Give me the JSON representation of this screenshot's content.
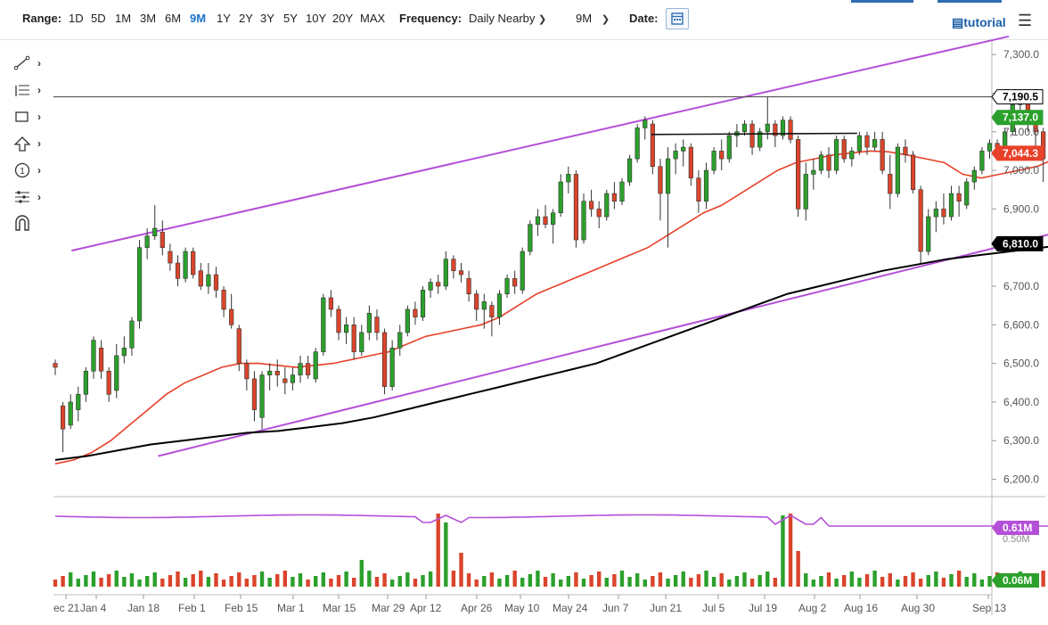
{
  "toolbar": {
    "range_label": "Range:",
    "ranges": [
      "1D",
      "5D",
      "1M",
      "3M",
      "6M",
      "9M",
      "1Y",
      "2Y",
      "3Y",
      "5Y",
      "10Y",
      "20Y",
      "MAX"
    ],
    "active_range": "9M",
    "frequency_label": "Frequency:",
    "frequency_value": "Daily Nearby",
    "period_value": "9M",
    "date_label": "Date:",
    "tutorial_label": "tutorial",
    "icons": [
      "calendar-icon",
      "film-icon",
      "hamburger-menu-icon"
    ]
  },
  "side_tools": {
    "icons": [
      "trend-line-icon",
      "fibonacci-icon",
      "rectangle-icon",
      "arrow-up-icon",
      "circle-number-icon",
      "pitchfork-icon",
      "magnet-icon"
    ],
    "counter_text": "1"
  },
  "colors": {
    "up": "#2ca02c",
    "down": "#d9452b",
    "ma50": "#e8412a",
    "ma200": "#000000",
    "channel": "#b44fd8",
    "oscillator": "#b44fd8",
    "accent": "#1a73c9"
  },
  "chart_data": {
    "type": "candlestick",
    "instrument_freq": "Daily Nearby",
    "x_tick_labels": [
      "ec 21",
      "Jan 4",
      "Jan 18",
      "Feb 1",
      "Feb 15",
      "Mar 1",
      "Mar 15",
      "Mar 29",
      "Apr 12",
      "Apr 26",
      "May 10",
      "May 24",
      "Jun 7",
      "Jun 21",
      "Jul 5",
      "Jul 19",
      "Aug 2",
      "Aug 16",
      "Aug 30",
      "Sep 13"
    ],
    "y_tick_labels": [
      "7,300.0",
      "7,200.0",
      "7,100.0",
      "7,000.0",
      "6,900.0",
      "6,800.0",
      "6,700.0",
      "6,600.0",
      "6,500.0",
      "6,400.0",
      "6,300.0",
      "6,200.0"
    ],
    "y_ticks": [
      7300,
      7200,
      7100,
      7000,
      6900,
      6800,
      6700,
      6600,
      6500,
      6400,
      6300,
      6200
    ],
    "ylim": [
      6155,
      7335
    ],
    "price_labels": [
      {
        "text": "7,190.5",
        "value": 7190.5,
        "color": "#ffffff",
        "text_color": "#000000",
        "border": "#000000"
      },
      {
        "text": "7,137.0",
        "value": 7137.0,
        "color": "#2ca02c",
        "text_color": "#ffffff"
      },
      {
        "text": "7,044.3",
        "value": 7044.3,
        "color": "#e8412a",
        "text_color": "#ffffff"
      },
      {
        "text": "6,810.0",
        "value": 6810.0,
        "color": "#000000",
        "text_color": "#ffffff"
      }
    ],
    "horizontal_line": 7190.5,
    "resistance_segment": {
      "from": "Jun 16",
      "to": "Aug 13",
      "value": 7093
    },
    "channel_upper": [
      {
        "day": 0,
        "value": 6792
      },
      {
        "day": 176,
        "value": 7347
      }
    ],
    "channel_lower": [
      {
        "day": 17,
        "value": 6260
      },
      {
        "day": 190,
        "value": 6857
      }
    ],
    "candles": [
      [
        6500,
        6510,
        6470,
        6490
      ],
      [
        6390,
        6400,
        6270,
        6330
      ],
      [
        6340,
        6420,
        6330,
        6400
      ],
      [
        6380,
        6440,
        6350,
        6420
      ],
      [
        6420,
        6490,
        6400,
        6480
      ],
      [
        6480,
        6570,
        6460,
        6560
      ],
      [
        6540,
        6560,
        6460,
        6480
      ],
      [
        6480,
        6490,
        6400,
        6420
      ],
      [
        6430,
        6550,
        6410,
        6520
      ],
      [
        6520,
        6570,
        6500,
        6540
      ],
      [
        6540,
        6620,
        6520,
        6610
      ],
      [
        6610,
        6820,
        6590,
        6800
      ],
      [
        6800,
        6850,
        6770,
        6830
      ],
      [
        6830,
        6910,
        6820,
        6850
      ],
      [
        6840,
        6870,
        6780,
        6800
      ],
      [
        6790,
        6810,
        6740,
        6760
      ],
      [
        6760,
        6780,
        6700,
        6720
      ],
      [
        6720,
        6800,
        6710,
        6790
      ],
      [
        6790,
        6800,
        6720,
        6730
      ],
      [
        6740,
        6760,
        6690,
        6700
      ],
      [
        6700,
        6760,
        6680,
        6730
      ],
      [
        6730,
        6750,
        6670,
        6690
      ],
      [
        6690,
        6700,
        6620,
        6640
      ],
      [
        6640,
        6680,
        6590,
        6600
      ],
      [
        6590,
        6600,
        6480,
        6500
      ],
      [
        6500,
        6510,
        6430,
        6460
      ],
      [
        6460,
        6480,
        6350,
        6380
      ],
      [
        6360,
        6480,
        6330,
        6470
      ],
      [
        6470,
        6500,
        6430,
        6480
      ],
      [
        6480,
        6510,
        6440,
        6470
      ],
      [
        6460,
        6490,
        6420,
        6450
      ],
      [
        6450,
        6490,
        6430,
        6470
      ],
      [
        6470,
        6520,
        6450,
        6500
      ],
      [
        6500,
        6520,
        6460,
        6470
      ],
      [
        6460,
        6540,
        6450,
        6530
      ],
      [
        6530,
        6680,
        6520,
        6670
      ],
      [
        6670,
        6690,
        6620,
        6640
      ],
      [
        6640,
        6650,
        6560,
        6580
      ],
      [
        6580,
        6620,
        6550,
        6600
      ],
      [
        6600,
        6620,
        6510,
        6530
      ],
      [
        6530,
        6600,
        6520,
        6580
      ],
      [
        6580,
        6650,
        6560,
        6630
      ],
      [
        6620,
        6640,
        6560,
        6580
      ],
      [
        6580,
        6590,
        6420,
        6440
      ],
      [
        6440,
        6560,
        6430,
        6540
      ],
      [
        6540,
        6600,
        6520,
        6580
      ],
      [
        6580,
        6650,
        6570,
        6640
      ],
      [
        6640,
        6660,
        6600,
        6620
      ],
      [
        6620,
        6700,
        6610,
        6690
      ],
      [
        6690,
        6720,
        6670,
        6710
      ],
      [
        6710,
        6730,
        6680,
        6700
      ],
      [
        6700,
        6790,
        6690,
        6770
      ],
      [
        6770,
        6780,
        6720,
        6740
      ],
      [
        6740,
        6760,
        6710,
        6730
      ],
      [
        6720,
        6740,
        6660,
        6680
      ],
      [
        6680,
        6690,
        6610,
        6640
      ],
      [
        6640,
        6680,
        6590,
        6660
      ],
      [
        6650,
        6660,
        6570,
        6620
      ],
      [
        6620,
        6690,
        6600,
        6680
      ],
      [
        6680,
        6730,
        6670,
        6720
      ],
      [
        6720,
        6740,
        6680,
        6700
      ],
      [
        6690,
        6800,
        6680,
        6790
      ],
      [
        6790,
        6870,
        6780,
        6860
      ],
      [
        6860,
        6900,
        6830,
        6880
      ],
      [
        6880,
        6910,
        6850,
        6860
      ],
      [
        6860,
        6900,
        6810,
        6890
      ],
      [
        6890,
        6990,
        6880,
        6970
      ],
      [
        6970,
        7010,
        6940,
        6990
      ],
      [
        6990,
        7000,
        6800,
        6820
      ],
      [
        6820,
        6940,
        6810,
        6920
      ],
      [
        6920,
        6950,
        6880,
        6900
      ],
      [
        6900,
        6920,
        6850,
        6880
      ],
      [
        6880,
        6950,
        6870,
        6940
      ],
      [
        6940,
        6970,
        6900,
        6920
      ],
      [
        6920,
        6980,
        6910,
        6970
      ],
      [
        6970,
        7040,
        6960,
        7030
      ],
      [
        7030,
        7120,
        7020,
        7110
      ],
      [
        7110,
        7140,
        7080,
        7130
      ],
      [
        7120,
        7130,
        6990,
        7010
      ],
      [
        7010,
        7030,
        6870,
        6940
      ],
      [
        6940,
        7060,
        6800,
        7030
      ],
      [
        7030,
        7070,
        6990,
        7050
      ],
      [
        7050,
        7080,
        7010,
        7060
      ],
      [
        7060,
        7070,
        6960,
        6980
      ],
      [
        6980,
        7000,
        6890,
        6920
      ],
      [
        6920,
        7020,
        6900,
        7000
      ],
      [
        7000,
        7060,
        6990,
        7050
      ],
      [
        7050,
        7080,
        7000,
        7030
      ],
      [
        7030,
        7100,
        7020,
        7090
      ],
      [
        7090,
        7120,
        7060,
        7100
      ],
      [
        7100,
        7130,
        7090,
        7120
      ],
      [
        7120,
        7130,
        7040,
        7060
      ],
      [
        7060,
        7110,
        7050,
        7100
      ],
      [
        7100,
        7190,
        7080,
        7120
      ],
      [
        7120,
        7130,
        7060,
        7090
      ],
      [
        7090,
        7140,
        7080,
        7130
      ],
      [
        7130,
        7140,
        7070,
        7080
      ],
      [
        7080,
        7090,
        6880,
        6900
      ],
      [
        6900,
        7020,
        6870,
        6990
      ],
      [
        6990,
        7030,
        6950,
        7000
      ],
      [
        7000,
        7050,
        6990,
        7040
      ],
      [
        7040,
        7060,
        6980,
        7000
      ],
      [
        7000,
        7090,
        6990,
        7080
      ],
      [
        7080,
        7090,
        7020,
        7030
      ],
      [
        7030,
        7060,
        7010,
        7050
      ],
      [
        7050,
        7100,
        7040,
        7090
      ],
      [
        7090,
        7100,
        7040,
        7060
      ],
      [
        7060,
        7100,
        7050,
        7080
      ],
      [
        7080,
        7100,
        6990,
        7000
      ],
      [
        6990,
        7040,
        6900,
        6940
      ],
      [
        6940,
        7070,
        6930,
        7060
      ],
      [
        7060,
        7080,
        7020,
        7040
      ],
      [
        7040,
        7050,
        6940,
        6950
      ],
      [
        6950,
        6960,
        6760,
        6790
      ],
      [
        6790,
        6900,
        6780,
        6880
      ],
      [
        6880,
        6920,
        6840,
        6900
      ],
      [
        6900,
        6940,
        6860,
        6880
      ],
      [
        6880,
        6960,
        6870,
        6940
      ],
      [
        6940,
        6960,
        6880,
        6920
      ],
      [
        6910,
        6980,
        6900,
        6970
      ],
      [
        6970,
        7010,
        6950,
        7000
      ],
      [
        7000,
        7060,
        6990,
        7050
      ],
      [
        7050,
        7080,
        7030,
        7070
      ],
      [
        7070,
        7080,
        7040,
        7060
      ],
      [
        7060,
        7110,
        7050,
        7100
      ],
      [
        7100,
        7190,
        7090,
        7170
      ],
      [
        7170,
        7190,
        7150,
        7180
      ],
      [
        7180,
        7185,
        7100,
        7120
      ],
      [
        7120,
        7140,
        7060,
        7100
      ],
      [
        7100,
        7110,
        6970,
        7030
      ],
      [
        7030,
        7100,
        7020,
        7090
      ],
      [
        7090,
        7110,
        7070,
        7100
      ],
      [
        7100,
        7130,
        7080,
        7120
      ],
      [
        7110,
        7150,
        7100,
        7137
      ]
    ],
    "ma50": [
      6240,
      6250,
      6270,
      6300,
      6340,
      6380,
      6420,
      6450,
      6470,
      6490,
      6500,
      6500,
      6495,
      6490,
      6495,
      6500,
      6510,
      6520,
      6530,
      6550,
      6570,
      6580,
      6590,
      6600,
      6620,
      6650,
      6680,
      6700,
      6720,
      6740,
      6760,
      6780,
      6800,
      6830,
      6860,
      6890,
      6910,
      6940,
      6970,
      7000,
      7020,
      7030,
      7040,
      7045,
      7050,
      7048,
      7040,
      7030,
      7020,
      6990,
      6980,
      6990,
      7000,
      7010,
      7030,
      7044
    ],
    "ma200": [
      6250,
      6260,
      6275,
      6290,
      6300,
      6310,
      6320,
      6325,
      6335,
      6345,
      6360,
      6380,
      6400,
      6420,
      6440,
      6460,
      6480,
      6500,
      6530,
      6560,
      6590,
      6620,
      6650,
      6680,
      6700,
      6720,
      6740,
      6755,
      6770,
      6780,
      6790,
      6800,
      6810
    ],
    "volume_labels": [
      {
        "text": "0.61M",
        "color": "#b44fd8"
      },
      {
        "text": "0.50M",
        "color": "#b44fd8"
      },
      {
        "text": "0.06M",
        "color": "#2ca02c"
      }
    ]
  }
}
